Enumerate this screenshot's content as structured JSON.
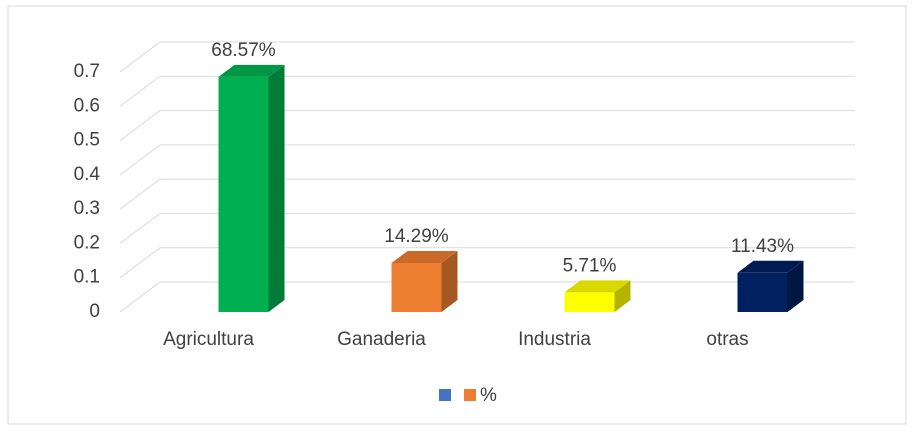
{
  "chart_data": {
    "type": "bar3d",
    "categories": [
      "Agricultura",
      "Ganaderia",
      "Industria",
      "otras"
    ],
    "series": [
      {
        "name": "%",
        "colors": [
          "#00b050",
          "#ed7d31",
          "#ffff00",
          "#002060"
        ],
        "values": [
          0.6857,
          0.1429,
          0.0571,
          0.1143
        ],
        "value_labels": [
          "68.57%",
          "14.29%",
          "5.71%",
          "11.43%"
        ]
      }
    ],
    "ylim": [
      0,
      0.7
    ],
    "yticks": [
      0,
      0.1,
      0.2,
      0.3,
      0.4,
      0.5,
      0.6,
      0.7
    ],
    "grid": true,
    "legend": "bottom"
  }
}
